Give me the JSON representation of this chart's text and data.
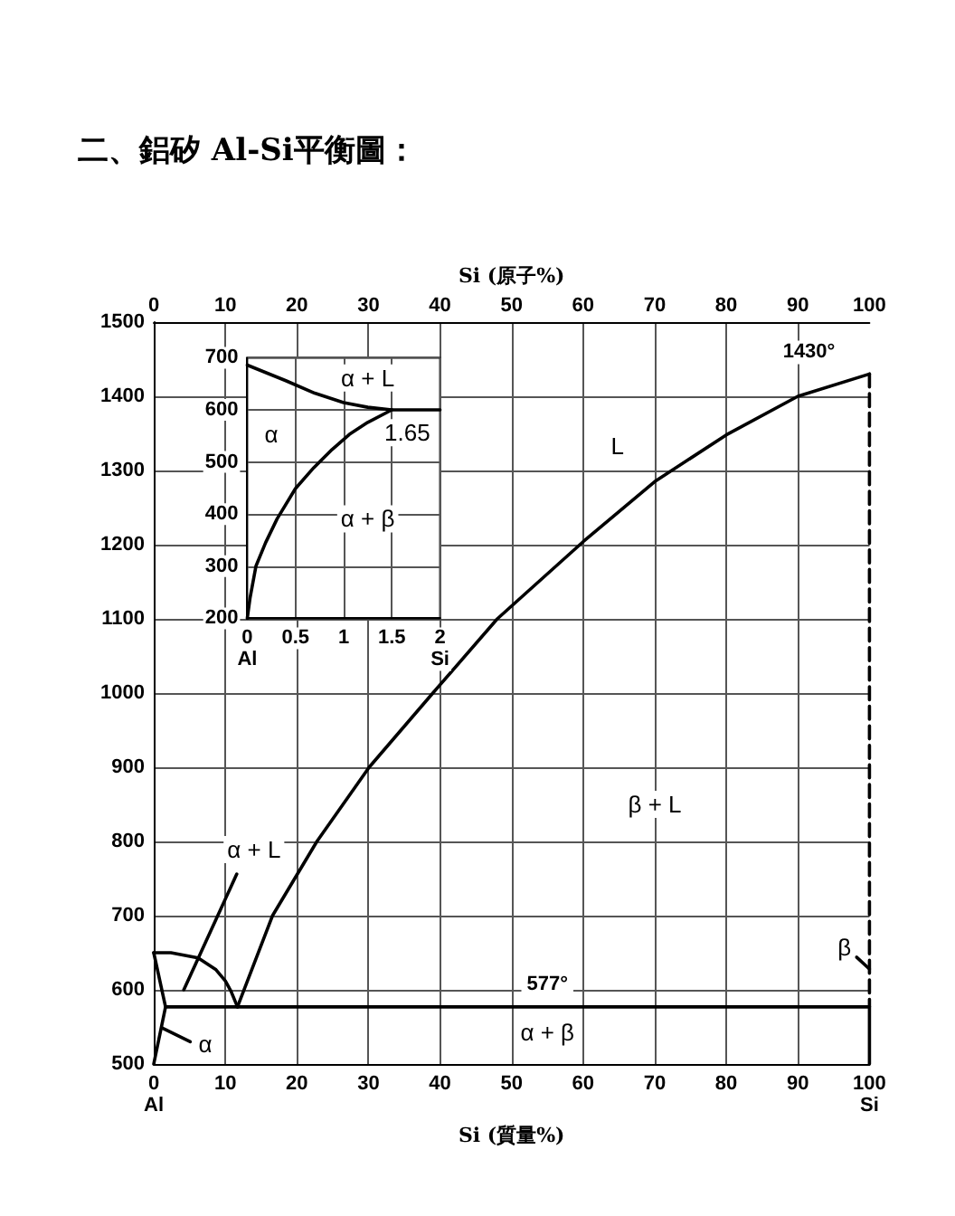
{
  "chart_data": [
    {
      "type": "line",
      "title": "二、鋁矽 Al-Si平衡圖：",
      "xlabel": "Si (質量%)",
      "x2label": "Si (原子%)",
      "xlim": [
        0,
        100
      ],
      "xticks": [
        {
          "value": 0,
          "label": "0\nAl"
        },
        10,
        20,
        30,
        40,
        50,
        60,
        70,
        80,
        90,
        {
          "value": 100,
          "label": "100\nSi"
        }
      ],
      "x2lim": [
        0,
        100
      ],
      "x2ticks": [
        0,
        10,
        20,
        30,
        40,
        50,
        60,
        70,
        80,
        90,
        100
      ],
      "ylim": [
        500,
        1500
      ],
      "yticks": [
        500,
        600,
        700,
        800,
        900,
        1000,
        1100,
        1200,
        1300,
        1400,
        1500
      ],
      "grid": true,
      "marker": "none",
      "line_style": "solid",
      "series": [
        {
          "color": "#000000",
          "x": [
            0,
            2.4,
            6.2,
            8.7,
            10,
            10.8,
            11.7
          ],
          "values": [
            650,
            650,
            643,
            627,
            612,
            598,
            577
          ]
        },
        {
          "color": "#000000",
          "x": [
            11.7,
            16.6,
            22.8,
            30.1,
            39,
            48,
            60,
            70,
            80,
            90,
            100
          ],
          "values": [
            577,
            700,
            800,
            900,
            1000,
            1100,
            1204,
            1285,
            1348,
            1400,
            1430
          ],
          "value_labels": [
            null,
            null,
            null,
            null,
            null,
            null,
            null,
            null,
            null,
            null,
            "1430°"
          ]
        },
        {
          "color": "#000000",
          "x": [
            0,
            1.65,
            0
          ],
          "values": [
            650,
            577,
            500
          ]
        },
        {
          "color": "#000000",
          "x": [
            1.65,
            55,
            100
          ],
          "values": [
            577,
            577,
            577
          ],
          "value_labels": [
            null,
            "577°",
            null
          ]
        },
        {
          "color": "#000000",
          "line_style": "dashed",
          "x": [
            100,
            100
          ],
          "values": [
            1430,
            577
          ]
        },
        {
          "color": "#000000",
          "x": [
            100,
            100
          ],
          "values": [
            577,
            500
          ]
        },
        {
          "color": "#000000",
          "x": [
            4.2,
            11.6
          ],
          "values": [
            600,
            756
          ]
        },
        {
          "color": "#000000",
          "x": [
            1.1,
            5.1
          ],
          "values": [
            549,
            530
          ]
        },
        {
          "color": "#000000",
          "x": [
            98.2,
            100
          ],
          "values": [
            644,
            628
          ]
        }
      ],
      "annotations": [
        {
          "text": "L",
          "x": 64.8,
          "y": 1333
        },
        {
          "text": "β + L",
          "x": 70,
          "y": 850
        },
        {
          "text": "α + L",
          "x": 14,
          "y": 789
        },
        {
          "text": "α",
          "x": 7.2,
          "y": 527
        },
        {
          "text": "β",
          "x": 96.5,
          "y": 657
        },
        {
          "text": "α + β",
          "x": 55,
          "y": 543
        }
      ]
    },
    {
      "type": "line",
      "xlim": [
        0,
        2
      ],
      "xticks": [
        {
          "value": 0,
          "label": "0\nAl"
        },
        0.5,
        1,
        1.5,
        {
          "value": 2,
          "label": "2\nSi"
        }
      ],
      "ylim": [
        200,
        700
      ],
      "yticks": [
        200,
        300,
        400,
        500,
        600,
        700
      ],
      "grid": true,
      "marker": "none",
      "line_style": "solid",
      "series": [
        {
          "color": "#000000",
          "x": [
            0,
            0.4,
            0.7,
            1,
            1.25,
            1.5,
            2
          ],
          "values": [
            686,
            656,
            632,
            614,
            605,
            600,
            600
          ]
        },
        {
          "color": "#000000",
          "x": [
            0,
            0.03,
            0.09,
            0.19,
            0.31,
            0.5,
            0.69,
            0.88,
            1.06,
            1.25,
            1.5
          ],
          "values": [
            200,
            240,
            300,
            345,
            391,
            449,
            489,
            524,
            553,
            576,
            600
          ]
        }
      ],
      "annotations": [
        {
          "text": "α + L",
          "x": 1.25,
          "y": 661
        },
        {
          "text": "α",
          "x": 0.25,
          "y": 553
        },
        {
          "text": "1.65",
          "x": 1.66,
          "y": 556
        },
        {
          "text": "α + β",
          "x": 1.25,
          "y": 391
        }
      ]
    }
  ]
}
